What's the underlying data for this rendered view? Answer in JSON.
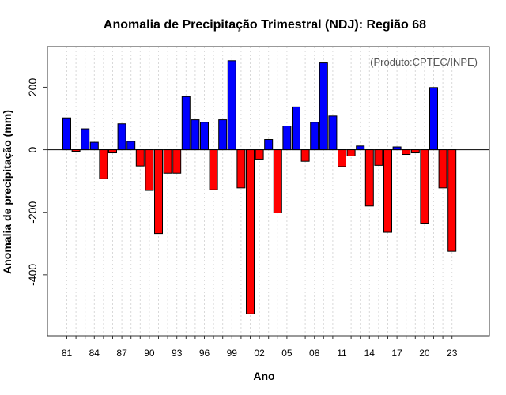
{
  "chart_data": {
    "type": "bar",
    "title": "Anomalia de Precipitação Trimestral (NDJ): Região 68",
    "xlabel": "Ano",
    "ylabel": "Anomalia de precipitação (mm)",
    "source_note": "(Produto:CPTEC/INPE)",
    "ylim": [
      -595,
      330
    ],
    "yticks": [
      200,
      0,
      -200,
      -400
    ],
    "xtick_labels": [
      "81",
      "84",
      "87",
      "90",
      "93",
      "96",
      "99",
      "02",
      "05",
      "08",
      "11",
      "14",
      "17",
      "20",
      "23"
    ],
    "positive_color": "#0000ff",
    "negative_color": "#ff0000",
    "years": [
      1981,
      1982,
      1983,
      1984,
      1985,
      1986,
      1987,
      1988,
      1989,
      1990,
      1991,
      1992,
      1993,
      1994,
      1995,
      1996,
      1997,
      1998,
      1999,
      2000,
      2001,
      2002,
      2003,
      2004,
      2005,
      2006,
      2007,
      2008,
      2009,
      2010,
      2011,
      2012,
      2013,
      2014,
      2015,
      2016,
      2017,
      2018,
      2019,
      2020,
      2021,
      2022,
      2023
    ],
    "values": [
      102,
      -5,
      67,
      24,
      -93,
      -10,
      83,
      27,
      -52,
      -130,
      -268,
      -75,
      -75,
      170,
      96,
      88,
      -128,
      96,
      285,
      -122,
      -525,
      -30,
      33,
      -202,
      76,
      137,
      -37,
      88,
      278,
      108,
      -54,
      -20,
      12,
      -180,
      -50,
      -264,
      9,
      -15,
      -10,
      -235,
      199,
      -122,
      -325
    ]
  }
}
